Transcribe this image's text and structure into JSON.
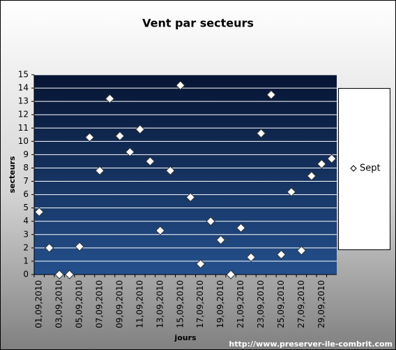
{
  "chart_data": {
    "type": "scatter",
    "title": "Vent par secteurs",
    "x_label": "jours",
    "y_label": "secteurs",
    "source": "http://www.preserver-ile-combrit.com",
    "categories": [
      "01,09,2010",
      null,
      "03,09,2010",
      null,
      "05,09,2010",
      null,
      "07,09,2010",
      null,
      "09,09,2010",
      null,
      "11,09,2010",
      null,
      "13,09,2010",
      null,
      "15,09,2010",
      null,
      "17,09,2010",
      null,
      "19,09,2010",
      null,
      "21,09,2010",
      null,
      "23,09,2010",
      null,
      "25,09,2010",
      null,
      "27,09,2010",
      null,
      "29,09,2010",
      null
    ],
    "series": [
      {
        "name": "Sept",
        "color": "#ffffff",
        "values": [
          4.7,
          2.0,
          0,
          0,
          2.1,
          10.3,
          7.8,
          13.2,
          10.4,
          9.2,
          10.9,
          8.5,
          3.3,
          7.8,
          14.2,
          5.8,
          0.8,
          4.0,
          2.6,
          0,
          3.5,
          1.3,
          10.6,
          13.5,
          1.5,
          6.2,
          1.8,
          7.4,
          8.3,
          8.7
        ]
      }
    ],
    "ylim": [
      0,
      15
    ],
    "yticks": [
      0,
      1,
      2,
      3,
      4,
      5,
      6,
      7,
      8,
      9,
      10,
      11,
      12,
      13,
      14,
      15
    ],
    "grid": true,
    "legend": "right"
  }
}
